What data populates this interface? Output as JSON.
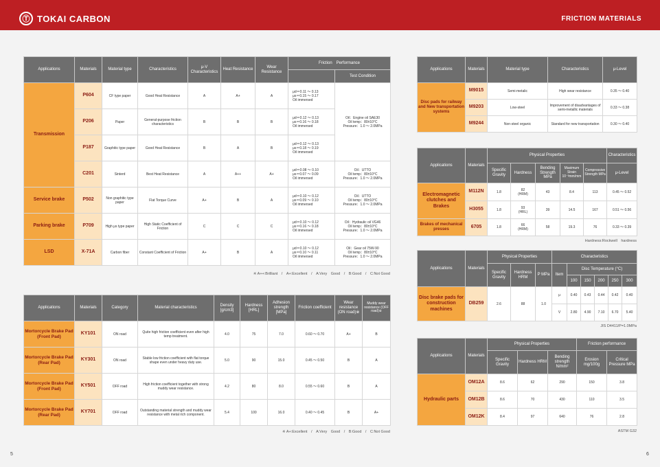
{
  "header": {
    "logo_mark": "Ⓣ",
    "brand": "TOKAI CARBON",
    "section": "FRICTION MATERIALS"
  },
  "t1": {
    "headers": {
      "applications": "Applications",
      "materials": "Materials",
      "material_type": "Material type",
      "characteristics": "Characteristics",
      "mu_v": "μ-V Characteristics",
      "heat": "Heat Resistance",
      "wear": "Wear Resistance",
      "friction_perf": "Friction　Performance",
      "test_condition": "Test Condition"
    },
    "rows": [
      {
        "app": "",
        "mat": "P604",
        "type": "CF type paper",
        "char": "Good Heat Resistance",
        "muv": "A",
        "heat": "A+",
        "wear": "A",
        "fric": "μd＝0.11 ～ 0.13\nμs＝0.15 ～ 0.17\nOil immersed",
        "cond": ""
      },
      {
        "app": "Transmission",
        "mat": "P206",
        "type": "Paper",
        "char": "General-purpose friction characteristics",
        "muv": "B",
        "heat": "B",
        "wear": "B",
        "fric": "μd＝0.12 ～ 0.13\nμs＝0.16 ～ 0.18\nOil immersed",
        "cond": "Oil：Engine oil SAE30\nOil temp：80±10°C\nPressure：1.0 ～ 2.0MPa"
      },
      {
        "app": "",
        "mat": "P187",
        "type": "Graphitic type paper",
        "char": "Good Heat Resistance",
        "muv": "B",
        "heat": "A",
        "wear": "B",
        "fric": "μd＝0.12 ～ 0.13\nμs＝0.18 ～ 0.19\nOil immersed",
        "cond": ""
      },
      {
        "app": "",
        "mat": "C201",
        "type": "Sinterd",
        "char": "Best Heat Resistance",
        "muv": "A",
        "heat": "A++",
        "wear": "A+",
        "fric": "μd＝0.08 ～ 0.10\nμs＝0.07 ～ 0.09\nOil immersed",
        "cond": "Oil：UTTO\nOil temp：80±10°C\nPressure：1.0 ～ 2.0MPa"
      },
      {
        "app": "Service brake",
        "mat": "P502",
        "type": "Non graphitic type paper",
        "char": "Flat Torque Curve",
        "muv": "A+",
        "heat": "B",
        "wear": "A",
        "fric": "μd＝0.10 ～ 0.12\nμs＝0.09 ～ 0.10\nOil immersed",
        "cond": "Oil：UTTO\nOil temp：80±10°C\nPressure：1.0 ～ 2.0MPa"
      },
      {
        "app": "Parking brake",
        "mat": "P709",
        "type": "High μs type paper",
        "char": "High Static Coefficient of Friction",
        "muv": "C",
        "heat": "C",
        "wear": "C",
        "fric": "μd＝0.10 ～ 0.12\nμs＝0.16 ～ 0.18\nOil immersed",
        "cond": "Oil：Hydraulic oil VG46\nOil temp：80±10°C\nPressure：1.0 ～ 2.0MPa"
      },
      {
        "app": "LSD",
        "mat": "X-71A",
        "type": "Carbon fiber",
        "char": "Constant Coefficient of Friction",
        "muv": "A+",
        "heat": "B",
        "wear": "A",
        "fric": "μd＝0.10 ～ 0.12\nμs＝0.10 ～ 0.11\nOil immersed",
        "cond": "Oil：Gear oil 75W-90\nOil temp：80±10°C\nPressure：1.0 ～ 2.0MPa"
      }
    ],
    "note": "※ A++:Brilliant　/　A+:Excellent　/　A:Very　Good　/　B:Good　/　C:Not Good"
  },
  "t2": {
    "headers": {
      "applications": "Applications",
      "materials": "Materials",
      "category": "Category",
      "material_char": "Material characteristics",
      "density": "Density [g/cm3]",
      "hardness": "Hardness [HRL]",
      "adhesion": "Adhesion strength [MPa]",
      "friction": "Friction coefficient",
      "wear": "Wear resistance (ON road)※",
      "muddy": "Muddy wear resistance (OFF road)※"
    },
    "rows": [
      {
        "app": "Mortorcycle Brake Pad (Front Pad)",
        "mat": "KY101",
        "cat": "ON road",
        "char": "Quite high friction coefficient even after high temp treatment.",
        "density": "4.0",
        "hard": "75",
        "adh": "7.0",
        "fric": "0.60 ～ 0.70",
        "wear": "A+",
        "muddy": "B"
      },
      {
        "app": "Mortorcycle Brake Pad (Rear Pad)",
        "mat": "KY301",
        "cat": "ON road",
        "char": "Stable low friction coefficient with flat torque shape even under heavy duty use.",
        "density": "5.0",
        "hard": "90",
        "adh": "15.0",
        "fric": "0.45 ～ 0.50",
        "wear": "B",
        "muddy": "A"
      },
      {
        "app": "Mortorcycle Brake Pad (Front Pad)",
        "mat": "KY501",
        "cat": "OFF road",
        "char": "High friction coefficient together with strong muddy wear resistance.",
        "density": "4.2",
        "hard": "80",
        "adh": "8.0",
        "fric": "0.55 ～ 0.60",
        "wear": "B",
        "muddy": "A"
      },
      {
        "app": "Mortorcycle Brake Pad (Rear Pad)",
        "mat": "KY701",
        "cat": "OFF road",
        "char": "Outstanding material strength and muddy wear resistance with metal rich component.",
        "density": "5.4",
        "hard": "100",
        "adh": "16.0",
        "fric": "0.40 ～ 0.45",
        "wear": "B",
        "muddy": "A+"
      }
    ],
    "note": "※ A+:Excellent　/　A:Very　Good　/　B:Good　/　C:Not Good"
  },
  "t3": {
    "headers": {
      "applications": "Applications",
      "materials": "Materials",
      "material_type": "Material type",
      "characteristics": "Characteristics",
      "mu_level": "μ-Level"
    },
    "app": "Disc pads for railway and New transportation systems",
    "rows": [
      {
        "mat": "M9015",
        "type": "Semi-metalic",
        "char": "High wear resistance",
        "mu": "0.35 ～ 0.40"
      },
      {
        "mat": "M9203",
        "type": "Low-steel",
        "char": "Improvement of disadvantages of semi-metallic materials",
        "mu": "0.33 ～ 0.38"
      },
      {
        "mat": "M9244",
        "type": "Non-steel organic",
        "char": "Standard for new transportation",
        "mu": "0.30 ～ 0.40"
      }
    ]
  },
  "t4": {
    "headers": {
      "applications": "Applications",
      "materials": "Materials",
      "physical": "Physical Properties",
      "characteristics": "Characteristics",
      "sg": "Specific Gravity",
      "hardness": "Hardness",
      "bending": "Bending Strength MPa",
      "strain": "Maximum Strain 10⁻³mm/mm",
      "compressive": "Compressive Strength MPa",
      "mu_level": "μ-Level"
    },
    "rows": [
      {
        "app": "Electromagnetic clutches and Brakes",
        "mat": "M112N",
        "sg": "1.8",
        "hard": "82\n(HRM)",
        "bend": "43",
        "strain": "8.4",
        "comp": "113",
        "mu": "0.45 ～ 0.52"
      },
      {
        "app": "",
        "mat": "H3055",
        "sg": "1.8",
        "hard": "93\n(HRL)",
        "bend": "39",
        "strain": "14.5",
        "comp": "167",
        "mu": "0.51 ～ 0.56"
      },
      {
        "app": "Brakes of mechanical presses",
        "mat": "6705",
        "sg": "1.8",
        "hard": "66\n(HRM)",
        "bend": "58",
        "strain": "19.3",
        "comp": "76",
        "mu": "0.33 ～ 0.39"
      }
    ],
    "note": "Hardness:Rockwell　hardness"
  },
  "t5": {
    "headers": {
      "applications": "Applications",
      "materials": "Materials",
      "physical": "Physical Properties",
      "characteristics": "Characteristics",
      "sg": "Specific Gravity",
      "hardness": "Hardness HRM",
      "p": "P MPa",
      "item": "Item",
      "disc_temp": "Disc Temperature (°C)",
      "temps": [
        "100",
        "150",
        "200",
        "250",
        "300"
      ]
    },
    "app": "Disc brake pads for construction machines",
    "mat": "DB259",
    "sg": "2.6",
    "hard": "88",
    "p": "1.0",
    "items": [
      {
        "item": "μ",
        "vals": [
          "0.40",
          "0.43",
          "0.44",
          "0.42",
          "0.40"
        ]
      },
      {
        "item": "V",
        "vals": [
          "2.80",
          "4.90",
          "7.10",
          "6.70",
          "5.40"
        ]
      }
    ],
    "note": "JIS D4411/P=1.0MPa"
  },
  "t6": {
    "headers": {
      "applications": "Applications",
      "materials": "Materials",
      "physical": "Physical Properties",
      "friction_perf": "Friction performance",
      "sg": "Specific Gravity",
      "hardness": "Hardness HRM",
      "bending": "Bending strength N/mm²",
      "erosion": "Erosion mg/100g",
      "critical": "Critical Pressure MPa"
    },
    "app": "Hydraulic parts",
    "rows": [
      {
        "mat": "OM12A",
        "sg": "8.6",
        "hard": "62",
        "bend": "290",
        "ero": "150",
        "crit": "3.8"
      },
      {
        "mat": "OM12B",
        "sg": "8.6",
        "hard": "70",
        "bend": "430",
        "ero": "110",
        "crit": "3.5"
      },
      {
        "mat": "OM12K",
        "sg": "8.4",
        "hard": "97",
        "bend": "640",
        "ero": "76",
        "crit": "2.8"
      }
    ],
    "note": "ASTM G32"
  },
  "pages": {
    "left": "5",
    "right": "6"
  }
}
